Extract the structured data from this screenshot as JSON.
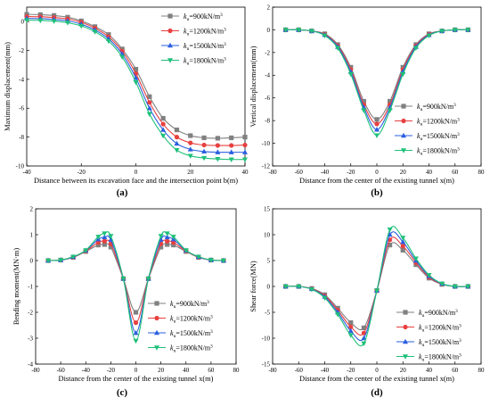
{
  "chart_data": [
    {
      "type": "line",
      "panel_label": "(a)",
      "xlabel": "Distance between its excavation face and the intersection point b(m)",
      "ylabel": "Maximum displacement(mm)",
      "xlim": [
        -40,
        40
      ],
      "ylim": [
        -10,
        1
      ],
      "xticks": [
        "-40",
        "-20",
        "0",
        "20",
        "40"
      ],
      "yticks": [
        "-10",
        "-8",
        "-6",
        "-4",
        "-2",
        "0"
      ],
      "legend_position": "top-right",
      "x": [
        -40,
        -35,
        -30,
        -25,
        -20,
        -15,
        -10,
        -5,
        0,
        5,
        10,
        15,
        20,
        25,
        30,
        35,
        40
      ],
      "series": [
        {
          "name": "k_u=900kN/m^3",
          "legend_sub": "u",
          "legend_text": "=900kN/m",
          "legend_sup": "3",
          "color": "#808080",
          "marker": "square",
          "values": [
            0.5,
            0.48,
            0.42,
            0.3,
            0.05,
            -0.35,
            -0.9,
            -1.9,
            -3.3,
            -5.2,
            -6.7,
            -7.5,
            -7.9,
            -8.05,
            -8.08,
            -8.05,
            -8.0
          ]
        },
        {
          "name": "k_u=1200kN/m^3",
          "legend_sub": "u",
          "legend_text": "=1200kN/m",
          "legend_sup": "3",
          "color": "#e84040",
          "marker": "circle",
          "values": [
            0.35,
            0.33,
            0.28,
            0.18,
            -0.05,
            -0.45,
            -1.05,
            -2.05,
            -3.6,
            -5.6,
            -7.1,
            -8.0,
            -8.4,
            -8.55,
            -8.58,
            -8.58,
            -8.55
          ]
        },
        {
          "name": "k_u=1500kN/m^3",
          "legend_sub": "u",
          "legend_text": "=1500kN/m",
          "legend_sup": "3",
          "color": "#2a5fe0",
          "marker": "triangle-up",
          "values": [
            0.22,
            0.2,
            0.15,
            0.05,
            -0.18,
            -0.58,
            -1.2,
            -2.25,
            -3.9,
            -6.0,
            -7.5,
            -8.45,
            -8.85,
            -9.0,
            -9.05,
            -9.05,
            -9.05
          ]
        },
        {
          "name": "k_u=1800kN/m^3",
          "legend_sub": "u",
          "legend_text": "=1800kN/m",
          "legend_sup": "3",
          "color": "#1fc07a",
          "marker": "triangle-down",
          "values": [
            0.1,
            0.08,
            0.03,
            -0.08,
            -0.3,
            -0.7,
            -1.35,
            -2.45,
            -4.2,
            -6.4,
            -7.9,
            -8.9,
            -9.3,
            -9.45,
            -9.52,
            -9.55,
            -9.55
          ]
        }
      ]
    },
    {
      "type": "line",
      "panel_label": "(b)",
      "xlabel": "Distance from the center of the existing tunnel x(m)",
      "ylabel": "Vertical displacement(mm)",
      "xlim": [
        -80,
        80
      ],
      "ylim": [
        -12,
        2
      ],
      "xticks": [
        "-80",
        "-60",
        "-40",
        "-20",
        "0",
        "20",
        "40",
        "60",
        "80"
      ],
      "yticks": [
        "-12",
        "-10",
        "-8",
        "-6",
        "-4",
        "-2",
        "0",
        "2"
      ],
      "legend_position": "bottom-right",
      "x": [
        -70,
        -60,
        -50,
        -40,
        -30,
        -20,
        -10,
        0,
        10,
        20,
        30,
        40,
        50,
        60,
        70
      ],
      "series": [
        {
          "name": "k_u=900kN/m^3",
          "legend_sub": "u",
          "legend_text": "=900kN/m",
          "legend_sup": "3",
          "color": "#808080",
          "marker": "square",
          "values": [
            0,
            0,
            -0.1,
            -0.35,
            -1.3,
            -3.3,
            -6.3,
            -7.9,
            -6.3,
            -3.3,
            -1.3,
            -0.35,
            -0.1,
            0,
            0
          ]
        },
        {
          "name": "k_u=1200kN/m^3",
          "legend_sub": "u",
          "legend_text": "=1200kN/m",
          "legend_sup": "3",
          "color": "#e84040",
          "marker": "circle",
          "values": [
            0,
            0,
            -0.1,
            -0.4,
            -1.4,
            -3.5,
            -6.6,
            -8.3,
            -6.6,
            -3.5,
            -1.4,
            -0.4,
            -0.1,
            0,
            0
          ]
        },
        {
          "name": "k_u=1500kN/m^3",
          "legend_sub": "u",
          "legend_text": "=1500kN/m",
          "legend_sup": "3",
          "color": "#2a5fe0",
          "marker": "triangle-up",
          "values": [
            0,
            0,
            -0.1,
            -0.45,
            -1.5,
            -3.7,
            -6.85,
            -8.8,
            -6.85,
            -3.7,
            -1.5,
            -0.45,
            -0.1,
            0,
            0
          ]
        },
        {
          "name": "k_u=1800kN/m^3",
          "legend_sub": "u",
          "legend_text": "=1800kN/m",
          "legend_sup": "3",
          "color": "#1fc07a",
          "marker": "triangle-down",
          "values": [
            0,
            0,
            -0.1,
            -0.5,
            -1.6,
            -3.9,
            -7.1,
            -9.3,
            -7.1,
            -3.9,
            -1.6,
            -0.5,
            -0.1,
            0,
            0
          ]
        }
      ]
    },
    {
      "type": "line",
      "panel_label": "(c)",
      "xlabel": "Distance from the center of the existing tunnel x(m)",
      "ylabel": "Bending moment(MN·m)",
      "xlim": [
        -80,
        80
      ],
      "ylim": [
        -4,
        2
      ],
      "xticks": [
        "-80",
        "-60",
        "-40",
        "-20",
        "0",
        "20",
        "40",
        "60",
        "80"
      ],
      "yticks": [
        "-4",
        "-3",
        "-2",
        "-1",
        "0",
        "1",
        "2"
      ],
      "legend_position": "bottom-right",
      "x": [
        -70,
        -60,
        -50,
        -40,
        -30,
        -25,
        -20,
        -10,
        0,
        10,
        20,
        25,
        30,
        40,
        50,
        60,
        70
      ],
      "series": [
        {
          "name": "k_u=900kN/m^3",
          "legend_sub": "u",
          "legend_text": "=900kN/m",
          "legend_sup": "3",
          "color": "#808080",
          "marker": "square",
          "values": [
            0,
            0.02,
            0.12,
            0.35,
            0.6,
            0.62,
            0.52,
            -0.7,
            -2.0,
            -0.7,
            0.52,
            0.62,
            0.6,
            0.35,
            0.12,
            0.02,
            0
          ]
        },
        {
          "name": "k_u=1200kN/m^3",
          "legend_sub": "u",
          "legend_text": "=1200kN/m",
          "legend_sup": "3",
          "color": "#e84040",
          "marker": "circle",
          "values": [
            0,
            0.02,
            0.13,
            0.37,
            0.7,
            0.75,
            0.65,
            -0.7,
            -2.4,
            -0.7,
            0.65,
            0.75,
            0.7,
            0.37,
            0.13,
            0.02,
            0
          ]
        },
        {
          "name": "k_u=1500kN/m^3",
          "legend_sub": "u",
          "legend_text": "=1500kN/m",
          "legend_sup": "3",
          "color": "#2a5fe0",
          "marker": "triangle-up",
          "values": [
            0,
            0.02,
            0.14,
            0.39,
            0.82,
            0.9,
            0.8,
            -0.7,
            -2.8,
            -0.7,
            0.8,
            0.9,
            0.82,
            0.39,
            0.14,
            0.02,
            0
          ]
        },
        {
          "name": "k_u=1800kN/m^3",
          "legend_sub": "u",
          "legend_text": "=1800kN/m",
          "legend_sup": "3",
          "color": "#1fc07a",
          "marker": "triangle-down",
          "values": [
            0,
            0.02,
            0.15,
            0.4,
            0.92,
            1.05,
            0.95,
            -0.7,
            -3.1,
            -0.7,
            0.95,
            1.05,
            0.92,
            0.4,
            0.15,
            0.02,
            0
          ]
        }
      ]
    },
    {
      "type": "line",
      "panel_label": "(d)",
      "xlabel": "Distance from the center of the existing tunnel x(m)",
      "ylabel": "Shear force(MN)",
      "xlim": [
        -80,
        80
      ],
      "ylim": [
        -15,
        15
      ],
      "xticks": [
        "-80",
        "-60",
        "-40",
        "-20",
        "0",
        "20",
        "40",
        "60",
        "80"
      ],
      "yticks": [
        "-15",
        "-10",
        "-5",
        "0",
        "5",
        "10",
        "15"
      ],
      "legend_position": "bottom-right",
      "x": [
        -70,
        -60,
        -50,
        -40,
        -30,
        -20,
        -10,
        0,
        10,
        20,
        30,
        40,
        50,
        60,
        70
      ],
      "series": [
        {
          "name": "k_u=900kN/m^3",
          "legend_sub": "u",
          "legend_text": "=900kN/m",
          "legend_sup": "3",
          "color": "#808080",
          "marker": "square",
          "values": [
            0,
            0,
            -0.4,
            -1.6,
            -4.2,
            -7.0,
            -8.0,
            -0.8,
            8.0,
            7.0,
            4.2,
            1.6,
            0.4,
            0,
            0
          ]
        },
        {
          "name": "k_u=1200kN/m^3",
          "legend_sub": "u",
          "legend_text": "=1200kN/m",
          "legend_sup": "3",
          "color": "#e84040",
          "marker": "circle",
          "values": [
            0,
            0,
            -0.45,
            -1.8,
            -4.6,
            -7.8,
            -9.0,
            -0.8,
            9.0,
            7.8,
            4.6,
            1.8,
            0.45,
            0,
            0
          ]
        },
        {
          "name": "k_u=1500kN/m^3",
          "legend_sub": "u",
          "legend_text": "=1500kN/m",
          "legend_sup": "3",
          "color": "#2a5fe0",
          "marker": "triangle-up",
          "values": [
            0,
            0,
            -0.5,
            -2.0,
            -5.0,
            -8.6,
            -10.0,
            -0.8,
            10.0,
            8.6,
            5.0,
            2.0,
            0.5,
            0,
            0
          ]
        },
        {
          "name": "k_u=1800kN/m^3",
          "legend_sub": "u",
          "legend_text": "=1800kN/m",
          "legend_sup": "3",
          "color": "#1fc07a",
          "marker": "triangle-down",
          "values": [
            0,
            0,
            -0.55,
            -2.2,
            -5.4,
            -9.4,
            -11.0,
            -0.8,
            11.0,
            9.4,
            5.4,
            2.2,
            0.55,
            0,
            0
          ]
        }
      ]
    }
  ]
}
